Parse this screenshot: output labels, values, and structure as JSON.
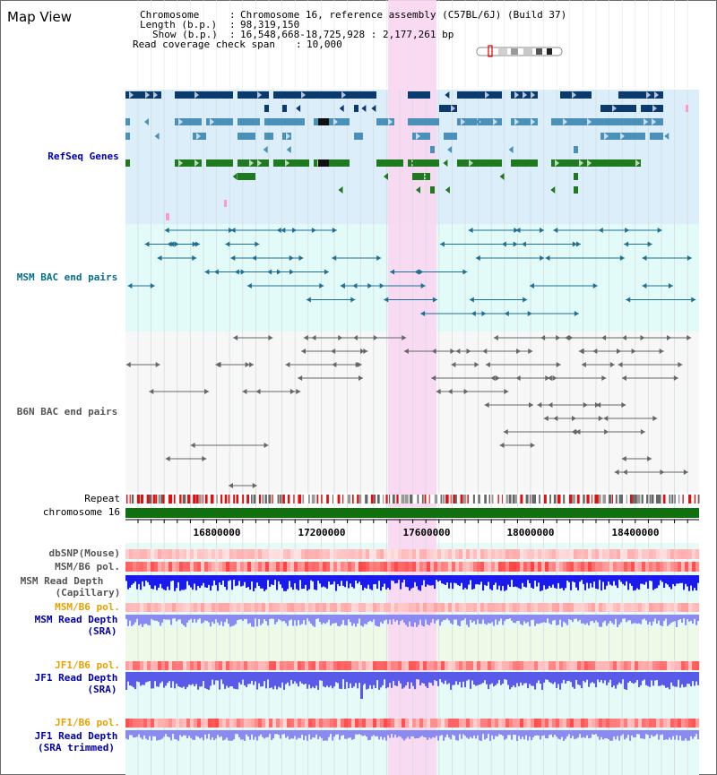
{
  "title": "Map View",
  "info": {
    "chromosome_key": "Chromosome",
    "chromosome_val": "Chromosome 16, reference assembly (C57BL/6J) (Build 37)",
    "length_key": "Length (b.p.)",
    "length_val": "98,319,150",
    "show_key": "Show (b.p.)",
    "show_val": "16,548,668-18,725,928 : 2,177,261 bp",
    "span_key": "Read coverage check span",
    "span_val": "10,000"
  },
  "tracks": {
    "refseq": "RefSeq Genes",
    "msm_bac": "MSM BAC end pairs",
    "b6n_bac": "B6N BAC end pairs",
    "repeat": "Repeat",
    "chromosome": "chromosome 16",
    "dbsnp": "dbSNP(Mouse)",
    "msm_pol1": "MSM/B6 pol.",
    "msm_depth_cap_1": "MSM Read Depth",
    "msm_depth_cap_2": "(Capillary)",
    "msm_pol2": "MSM/B6 pol.",
    "msm_depth_sra_1": "MSM Read Depth",
    "msm_depth_sra_2": "(SRA)",
    "jf1_pol1": "JF1/B6 pol.",
    "jf1_depth_sra_1": "JF1 Read Depth",
    "jf1_depth_sra_2": "(SRA)",
    "jf1_pol2": "JF1/B6 pol.",
    "jf1_depth_trim_1": "JF1 Read Depth",
    "jf1_depth_trim_2": "(SRA trimmed)"
  },
  "axis_ticks": [
    "16800000",
    "17200000",
    "17600000",
    "18000000",
    "18400000"
  ],
  "colors": {
    "highlight": "#f9d6f1",
    "refseq_bg": "#dbeef9",
    "track_bg": "#e3fbf8",
    "label_dark_blue": "#0000aa",
    "label_teal": "#007090",
    "label_gray": "#555555",
    "label_orange": "#e8a000",
    "chromosome_bar": "#107010"
  }
}
